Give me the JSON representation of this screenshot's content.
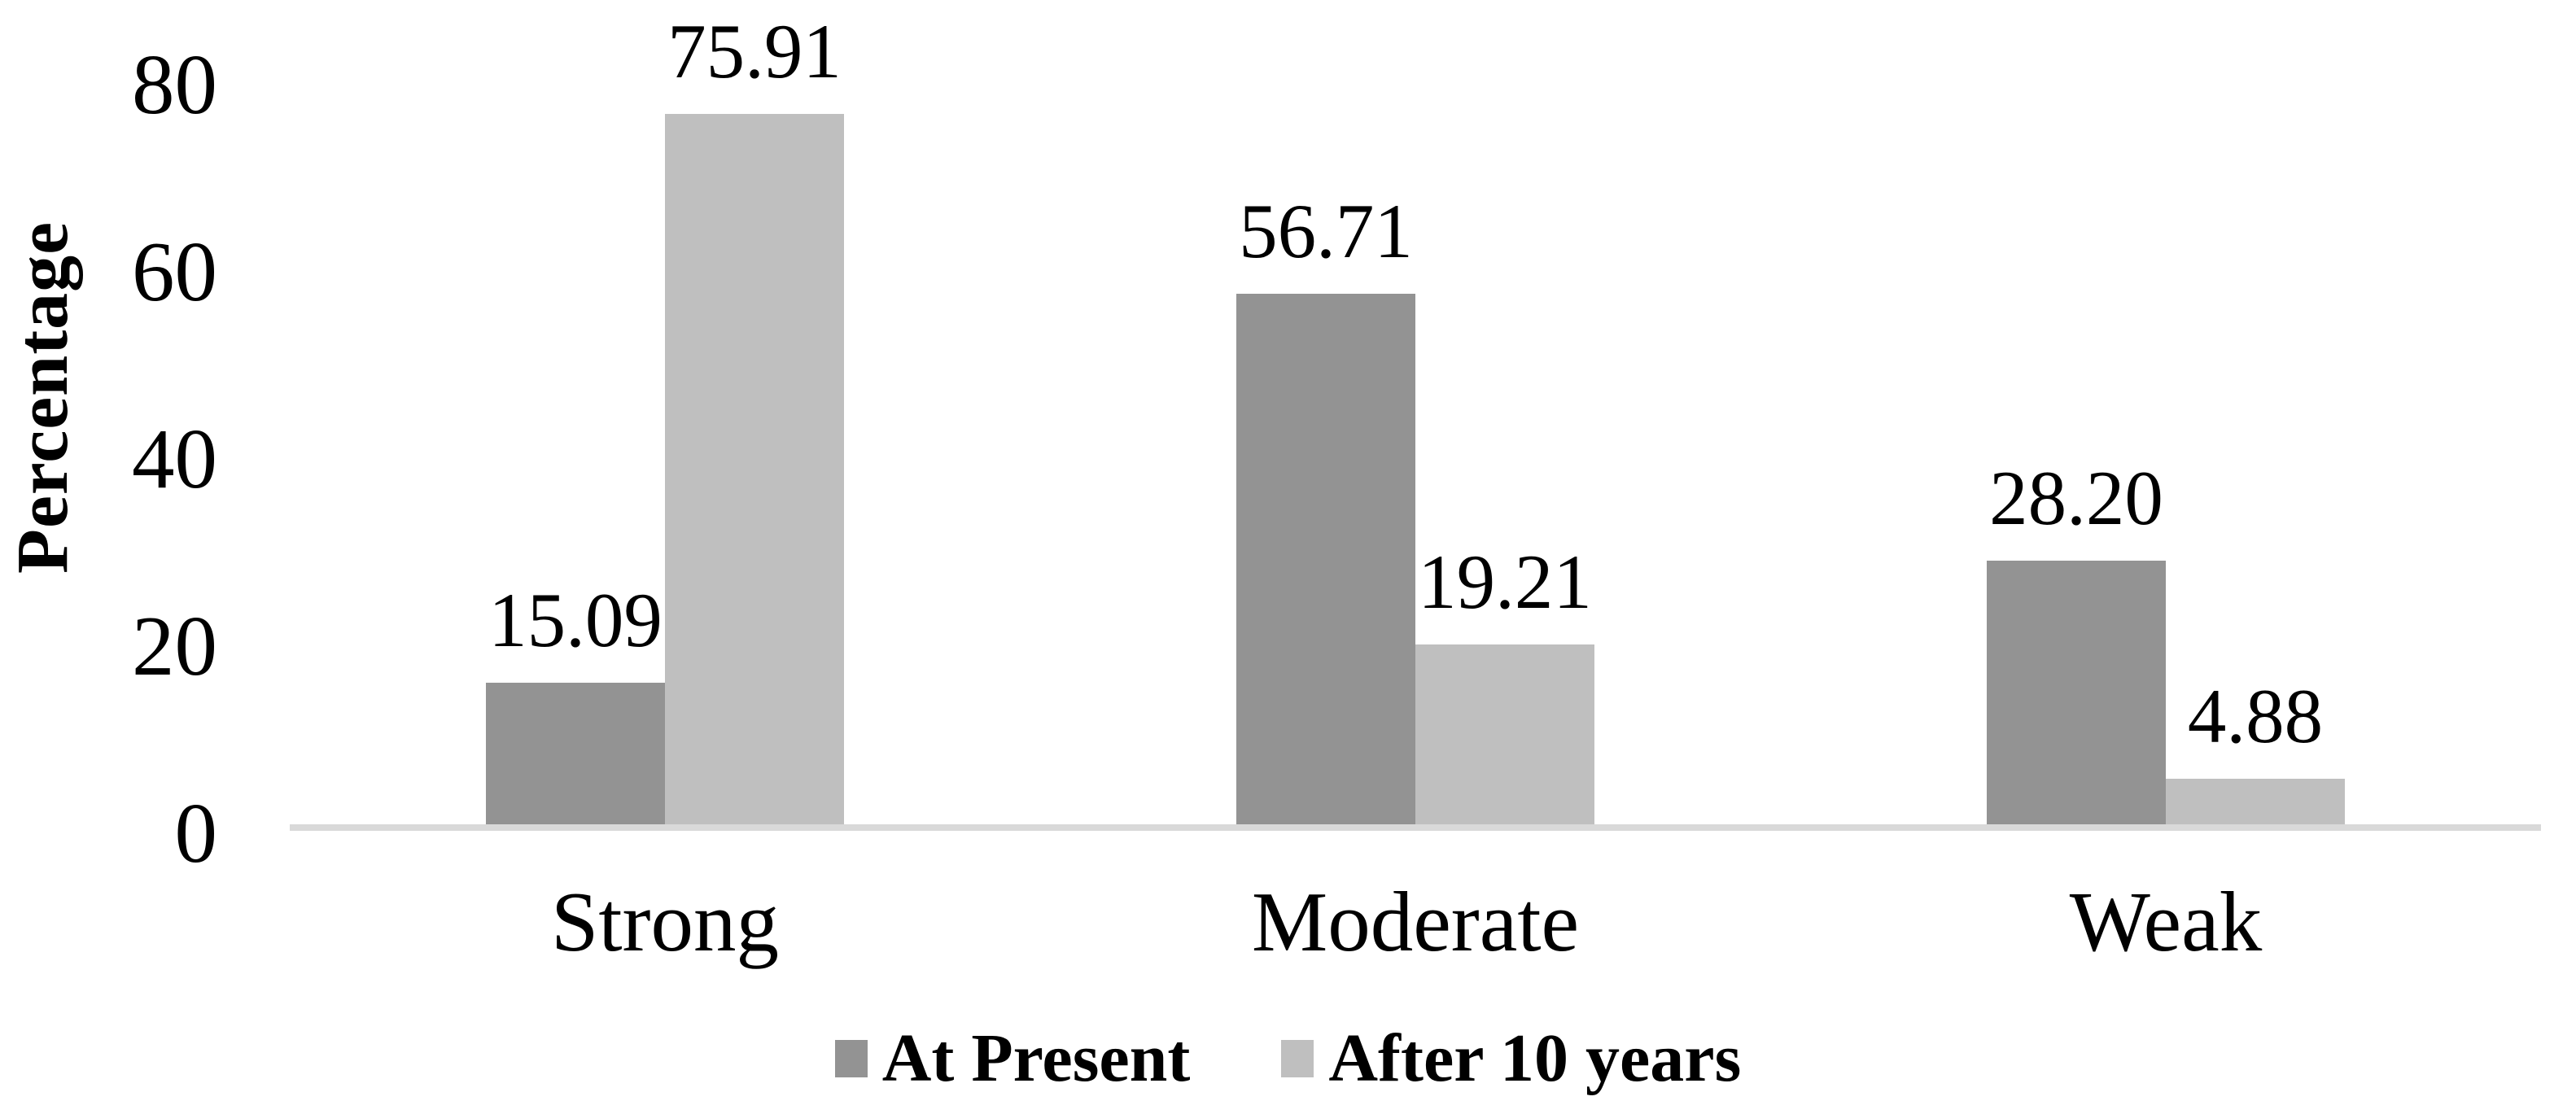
{
  "chart_data": {
    "type": "bar",
    "title": "",
    "xlabel": "",
    "ylabel": "Percentage",
    "categories": [
      "Strong",
      "Moderate",
      "Weak"
    ],
    "series": [
      {
        "name": "At Present",
        "color": "#939393",
        "values": [
          15.09,
          56.71,
          28.2
        ],
        "labels": [
          "15.09",
          "56.71",
          "28.20"
        ]
      },
      {
        "name": "After 10 years",
        "color": "#bfbfbf",
        "values": [
          75.91,
          19.21,
          4.88
        ],
        "labels": [
          "75.91",
          "19.21",
          "4.88"
        ]
      }
    ],
    "y_ticks": [
      0,
      20,
      40,
      60,
      80
    ],
    "ylim": [
      0,
      80
    ],
    "grid": false,
    "legend_position": "bottom",
    "bar_labels_position": "outside-end",
    "axis_line_color": "#d9d9d9",
    "text_color": "#000000",
    "background": "#ffffff"
  }
}
